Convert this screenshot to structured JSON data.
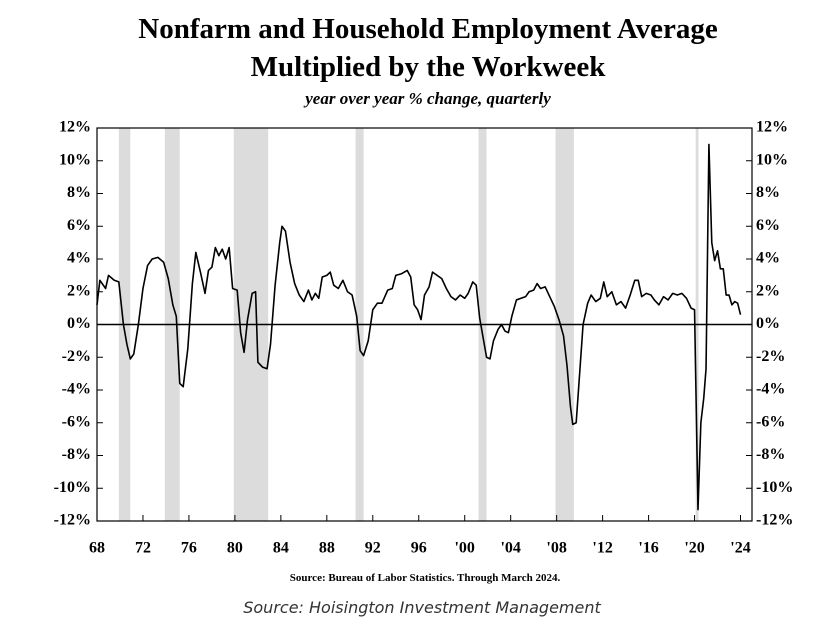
{
  "chart_data": {
    "type": "line",
    "title": [
      "Nonfarm and Household Employment Average",
      "Multiplied by the Workweek"
    ],
    "subtitle": "year over year % change, quarterly",
    "source_note": "Source: Bureau of Labor Statistics. Through March 2024.",
    "footer": "Source: Hoisington Investment Management",
    "color": "#000000",
    "recession_color": "#dcdcdc",
    "recessions": [
      [
        1969.9,
        1970.9
      ],
      [
        1973.9,
        1975.2
      ],
      [
        1979.9,
        1982.9
      ],
      [
        1990.5,
        1991.2
      ],
      [
        2001.2,
        2001.9
      ],
      [
        2007.9,
        2009.5
      ],
      [
        2020.1,
        2020.35
      ]
    ],
    "x": [
      1968.0,
      1968.25,
      1968.75,
      1969.0,
      1969.5,
      1969.9,
      1970.3,
      1970.6,
      1970.9,
      1971.2,
      1971.6,
      1972.0,
      1972.4,
      1972.8,
      1973.3,
      1973.8,
      1974.2,
      1974.6,
      1974.9,
      1975.2,
      1975.5,
      1975.9,
      1976.3,
      1976.6,
      1977.0,
      1977.4,
      1977.7,
      1978.0,
      1978.3,
      1978.6,
      1978.9,
      1979.2,
      1979.5,
      1979.8,
      1980.2,
      1980.5,
      1980.8,
      1981.1,
      1981.5,
      1981.8,
      1982.0,
      1982.4,
      1982.8,
      1983.1,
      1983.5,
      1983.9,
      1984.1,
      1984.4,
      1984.8,
      1985.2,
      1985.6,
      1986.0,
      1986.4,
      1986.7,
      1987.0,
      1987.3,
      1987.6,
      1988.0,
      1988.3,
      1988.6,
      1989.0,
      1989.4,
      1989.8,
      1990.2,
      1990.6,
      1990.9,
      1991.2,
      1991.6,
      1992.0,
      1992.4,
      1992.8,
      1993.3,
      1993.7,
      1994.0,
      1994.5,
      1995.0,
      1995.3,
      1995.6,
      1995.9,
      1996.2,
      1996.5,
      1996.9,
      1997.2,
      1997.6,
      1998.0,
      1998.4,
      1998.8,
      1999.2,
      1999.6,
      2000.0,
      2000.3,
      2000.7,
      2001.0,
      2001.3,
      2001.6,
      2001.9,
      2002.2,
      2002.5,
      2002.9,
      2003.2,
      2003.5,
      2003.8,
      2004.1,
      2004.5,
      2004.9,
      2005.3,
      2005.6,
      2006.0,
      2006.3,
      2006.6,
      2007.0,
      2007.4,
      2007.8,
      2008.2,
      2008.6,
      2008.9,
      2009.2,
      2009.4,
      2009.7,
      2010.0,
      2010.3,
      2010.7,
      2011.0,
      2011.4,
      2011.8,
      2012.1,
      2012.4,
      2012.8,
      2013.2,
      2013.6,
      2014.0,
      2014.4,
      2014.8,
      2015.1,
      2015.4,
      2015.8,
      2016.2,
      2016.5,
      2016.9,
      2017.3,
      2017.7,
      2018.1,
      2018.5,
      2018.9,
      2019.3,
      2019.7,
      2020.0,
      2020.3,
      2020.55,
      2020.8,
      2021.0,
      2021.25,
      2021.5,
      2021.75,
      2022.0,
      2022.25,
      2022.5,
      2022.75,
      2023.0,
      2023.25,
      2023.5,
      2023.75,
      2024.0
    ],
    "values": [
      1.2,
      2.7,
      2.2,
      3.0,
      2.7,
      2.6,
      0.0,
      -1.2,
      -2.1,
      -1.8,
      0.0,
      2.2,
      3.6,
      4.0,
      4.1,
      3.8,
      2.8,
      1.2,
      0.5,
      -3.6,
      -3.8,
      -1.5,
      2.5,
      4.4,
      3.2,
      1.9,
      3.3,
      3.5,
      4.7,
      4.2,
      4.6,
      4.0,
      4.7,
      2.2,
      2.1,
      -0.5,
      -1.7,
      0.3,
      1.9,
      2.0,
      -2.3,
      -2.6,
      -2.7,
      -1.2,
      2.4,
      5.0,
      6.0,
      5.7,
      3.8,
      2.5,
      1.8,
      1.4,
      2.1,
      1.5,
      1.9,
      1.6,
      2.9,
      3.0,
      3.2,
      2.4,
      2.2,
      2.7,
      2.0,
      1.8,
      0.5,
      -1.6,
      -1.9,
      -1.0,
      0.9,
      1.3,
      1.3,
      2.1,
      2.2,
      3.0,
      3.1,
      3.3,
      2.9,
      1.2,
      0.9,
      0.3,
      1.8,
      2.3,
      3.2,
      3.0,
      2.8,
      2.2,
      1.7,
      1.5,
      1.8,
      1.6,
      1.9,
      2.6,
      2.4,
      0.4,
      -0.8,
      -2.0,
      -2.1,
      -1.0,
      -0.3,
      0.0,
      -0.4,
      -0.5,
      0.5,
      1.5,
      1.6,
      1.7,
      2.0,
      2.1,
      2.5,
      2.2,
      2.3,
      1.7,
      1.1,
      0.3,
      -0.7,
      -2.5,
      -5.0,
      -6.1,
      -6.0,
      -3.0,
      0.0,
      1.3,
      1.8,
      1.4,
      1.6,
      2.6,
      1.7,
      2.0,
      1.2,
      1.4,
      1.0,
      1.8,
      2.7,
      2.7,
      1.7,
      1.9,
      1.8,
      1.5,
      1.2,
      1.7,
      1.5,
      1.9,
      1.8,
      1.9,
      1.6,
      1.0,
      0.9,
      -11.3,
      -6.0,
      -4.5,
      -2.7,
      11.0,
      5.0,
      3.9,
      4.5,
      3.4,
      3.4,
      1.8,
      1.8,
      1.2,
      1.4,
      1.3,
      0.6
    ],
    "xlim": [
      1968,
      2025
    ],
    "ylim": [
      -12,
      12
    ],
    "xticks": [
      {
        "value": 1968,
        "label": "68"
      },
      {
        "value": 1972,
        "label": "72"
      },
      {
        "value": 1976,
        "label": "76"
      },
      {
        "value": 1980,
        "label": "80"
      },
      {
        "value": 1984,
        "label": "84"
      },
      {
        "value": 1988,
        "label": "88"
      },
      {
        "value": 1992,
        "label": "92"
      },
      {
        "value": 1996,
        "label": "96"
      },
      {
        "value": 2000,
        "label": "'00"
      },
      {
        "value": 2004,
        "label": "'04"
      },
      {
        "value": 2008,
        "label": "'08"
      },
      {
        "value": 2012,
        "label": "'12"
      },
      {
        "value": 2016,
        "label": "'16"
      },
      {
        "value": 2020,
        "label": "'20"
      },
      {
        "value": 2024,
        "label": "'24"
      }
    ],
    "yticks": [
      {
        "value": -12,
        "label": "-12%"
      },
      {
        "value": -10,
        "label": "-10%"
      },
      {
        "value": -8,
        "label": "-8%"
      },
      {
        "value": -6,
        "label": "-6%"
      },
      {
        "value": -4,
        "label": "-4%"
      },
      {
        "value": -2,
        "label": "-2%"
      },
      {
        "value": 0,
        "label": "0%"
      },
      {
        "value": 2,
        "label": "2%"
      },
      {
        "value": 4,
        "label": "4%"
      },
      {
        "value": 6,
        "label": "6%"
      },
      {
        "value": 8,
        "label": "8%"
      },
      {
        "value": 10,
        "label": "10%"
      },
      {
        "value": 12,
        "label": "12%"
      }
    ]
  }
}
